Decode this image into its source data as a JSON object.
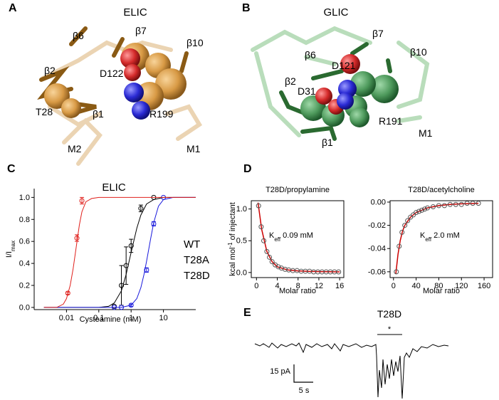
{
  "panel_labels": [
    "A",
    "B",
    "C",
    "D",
    "E"
  ],
  "structure_A": {
    "title": "ELIC",
    "labels": [
      "β6",
      "β7",
      "β10",
      "β2",
      "D122",
      "T28",
      "β1",
      "R199",
      "M2",
      "M1"
    ]
  },
  "structure_B": {
    "title": "GLIC",
    "labels": [
      "β7",
      "β6",
      "β10",
      "D121",
      "β2",
      "D31",
      "R191",
      "β1",
      "M1"
    ]
  },
  "chart_data": [
    {
      "type": "scatter",
      "title": "ELIC",
      "xlabel": "Cysteamine (mM)",
      "ylabel": {
        "main": "I/I",
        "sub": "max"
      },
      "xscale": "log",
      "xlim": [
        0.001,
        100
      ],
      "xticks": [
        0.01,
        0.1,
        1,
        10
      ],
      "ylim": [
        -0.02,
        1.08
      ],
      "yticks": [
        {
          "value": 0,
          "label": "0.0"
        },
        0.2,
        0.4,
        0.6,
        0.8,
        {
          "value": 1,
          "label": "1.0"
        }
      ],
      "series": [
        {
          "name": "WT",
          "color": "#000000",
          "x": [
            0.3,
            0.5,
            0.7,
            1,
            2,
            5
          ],
          "values": [
            0.01,
            0.2,
            0.38,
            0.56,
            0.9,
            1.0
          ],
          "errors": [
            0,
            0.18,
            0.17,
            0.06,
            0.03,
            0
          ],
          "fit_x": [
            0.002,
            0.1,
            0.2,
            0.3,
            0.5,
            0.7,
            1,
            1.5,
            2,
            3,
            5,
            10,
            100
          ],
          "fit_values": [
            0,
            0,
            0.01,
            0.04,
            0.15,
            0.3,
            0.5,
            0.72,
            0.84,
            0.94,
            0.98,
            1,
            1
          ]
        },
        {
          "name": "T28A",
          "color": "#1a1adc",
          "x": [
            0.3,
            0.5,
            1,
            3,
            5,
            10
          ],
          "values": [
            0.0,
            0.0,
            0.02,
            0.34,
            0.76,
            1.0
          ],
          "errors": [
            0,
            0,
            0.01,
            0.02,
            0.02,
            0
          ],
          "fit_x": [
            0.002,
            0.5,
            1,
            1.5,
            2,
            2.5,
            3,
            4,
            5,
            7,
            10,
            20,
            100
          ],
          "fit_values": [
            0,
            0,
            0.02,
            0.08,
            0.18,
            0.3,
            0.42,
            0.62,
            0.77,
            0.92,
            0.98,
            1,
            1
          ]
        },
        {
          "name": "T28D",
          "color": "#e0201c",
          "x": [
            0.011,
            0.021,
            0.03
          ],
          "values": [
            0.13,
            0.63,
            0.97
          ],
          "errors": [
            0.01,
            0.03,
            0.03
          ],
          "fit_x": [
            0.002,
            0.005,
            0.008,
            0.01,
            0.013,
            0.016,
            0.02,
            0.025,
            0.03,
            0.04,
            0.06,
            0.1,
            100
          ],
          "fit_values": [
            0,
            0,
            0.03,
            0.08,
            0.2,
            0.35,
            0.55,
            0.75,
            0.87,
            0.96,
            0.99,
            1,
            1
          ]
        }
      ]
    },
    {
      "type": "scatter",
      "title": "T28D/propylamine",
      "xlabel": "Molar ratio",
      "ylabel": {
        "main": "kcal mol",
        "sup": "-1",
        "rest": " of injectant"
      },
      "annotation": {
        "main": "K",
        "sub": "eff",
        "rest": " 0.09 mM"
      },
      "xlim": [
        -1,
        16.8
      ],
      "xticks": [
        0,
        4,
        8,
        12,
        16
      ],
      "ylim": [
        -0.08,
        1.13
      ],
      "yticks": [
        {
          "value": 0,
          "label": "0.0"
        },
        0.5,
        {
          "value": 1,
          "label": "1.0"
        }
      ],
      "series": [
        {
          "color": "#555555",
          "x": [
            0.4,
            0.9,
            1.4,
            2,
            2.5,
            3,
            3.6,
            4.2,
            4.8,
            5.5,
            6.2,
            7,
            7.8,
            8.6,
            9.4,
            10.2,
            11,
            11.8,
            12.6,
            13.4,
            14.2,
            15,
            15.8
          ],
          "values": [
            1.05,
            0.72,
            0.5,
            0.33,
            0.24,
            0.17,
            0.12,
            0.09,
            0.07,
            0.05,
            0.04,
            0.03,
            0.03,
            0.02,
            0.02,
            0.02,
            0.01,
            0.01,
            0.01,
            0.01,
            0.01,
            0.01,
            0.01
          ]
        }
      ],
      "fit": {
        "color": "#cc0000",
        "x": [
          0.3,
          1,
          2,
          3,
          4,
          6,
          8,
          10,
          12,
          14,
          16
        ],
        "values": [
          1.1,
          0.68,
          0.33,
          0.17,
          0.09,
          0.04,
          0.025,
          0.018,
          0.014,
          0.012,
          0.01
        ]
      }
    },
    {
      "type": "scatter",
      "title": "T28D/acetylcholine",
      "xlabel": "Molar ratio",
      "annotation": {
        "main": "K",
        "sub": "eff",
        "rest": " 2.0 mM"
      },
      "xlim": [
        -6,
        175
      ],
      "xticks": [
        0,
        40,
        80,
        120,
        160
      ],
      "ylim": [
        -0.065,
        0.0012
      ],
      "yticks": [
        -0.06,
        -0.04,
        -0.02,
        {
          "value": 0,
          "label": "0.00"
        }
      ],
      "series": [
        {
          "color": "#555555",
          "x": [
            5,
            10,
            15,
            20,
            25,
            30,
            35,
            40,
            45,
            50,
            55,
            60,
            70,
            80,
            90,
            100,
            110,
            120,
            130,
            140,
            150
          ],
          "values": [
            -0.06,
            -0.038,
            -0.026,
            -0.02,
            -0.016,
            -0.013,
            -0.011,
            -0.009,
            -0.008,
            -0.007,
            -0.006,
            -0.005,
            -0.004,
            -0.003,
            -0.003,
            -0.002,
            -0.002,
            -0.002,
            -0.001,
            -0.001,
            -0.001
          ]
        }
      ],
      "fit": {
        "color": "#cc0000",
        "x": [
          4,
          8,
          12,
          16,
          20,
          30,
          40,
          60,
          80,
          100,
          120,
          150
        ],
        "values": [
          -0.062,
          -0.045,
          -0.033,
          -0.025,
          -0.02,
          -0.013,
          -0.009,
          -0.005,
          -0.003,
          -0.002,
          -0.0015,
          -0.001
        ]
      }
    }
  ],
  "trace_E": {
    "title": "T28D",
    "marker": "*",
    "scale_y": "15 pA",
    "scale_x": "5 s"
  }
}
